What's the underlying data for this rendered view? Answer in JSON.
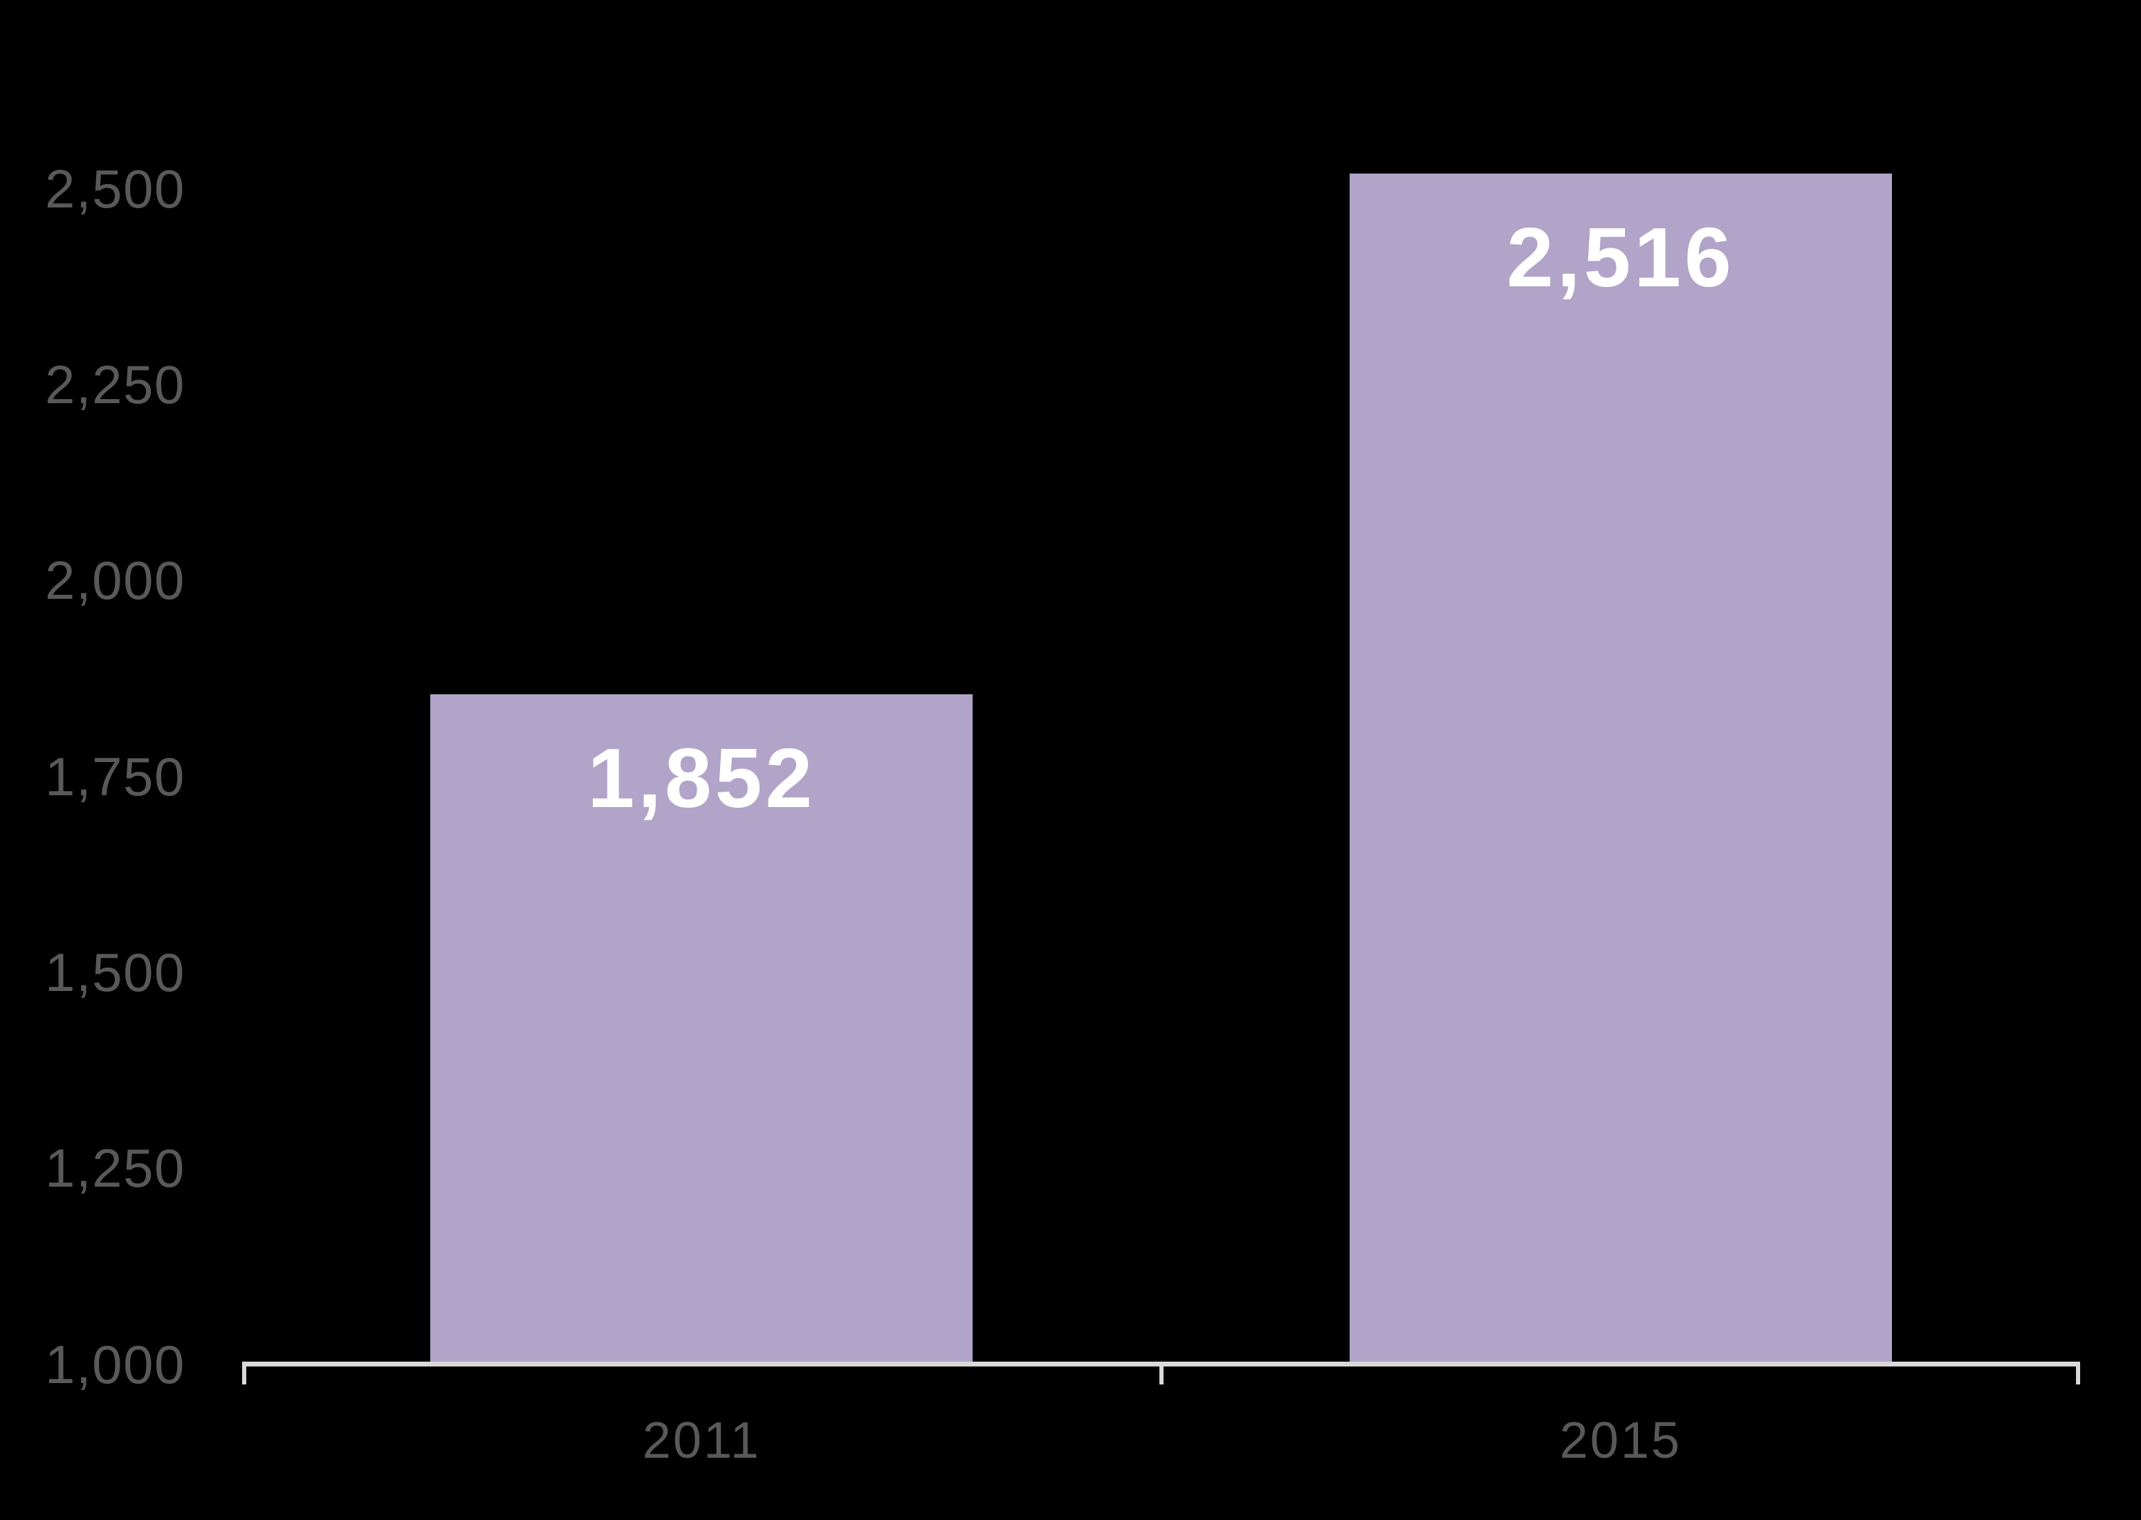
{
  "chart_data": {
    "type": "bar",
    "categories": [
      "2011",
      "2015"
    ],
    "values": [
      1852,
      2516
    ],
    "value_labels": [
      "1,852",
      "2,516"
    ],
    "y_ticks": [
      1000,
      1250,
      1500,
      1750,
      2000,
      2250,
      2500
    ],
    "y_tick_labels": [
      "1,000",
      "1,250",
      "1,500",
      "1,750",
      "2,000",
      "2,250",
      "2,500"
    ],
    "ylim": [
      1000,
      2500
    ],
    "title": "",
    "xlabel": "",
    "ylabel": "",
    "grid": false,
    "legend": false,
    "bar_label_position": "inside-top",
    "colors": {
      "background": "#000000",
      "bar_fill": "#B2A4C8",
      "value_label_text": "#FFFFFF",
      "axis_line": "#D9D9D9",
      "axis_tick_text": "#595959"
    }
  }
}
